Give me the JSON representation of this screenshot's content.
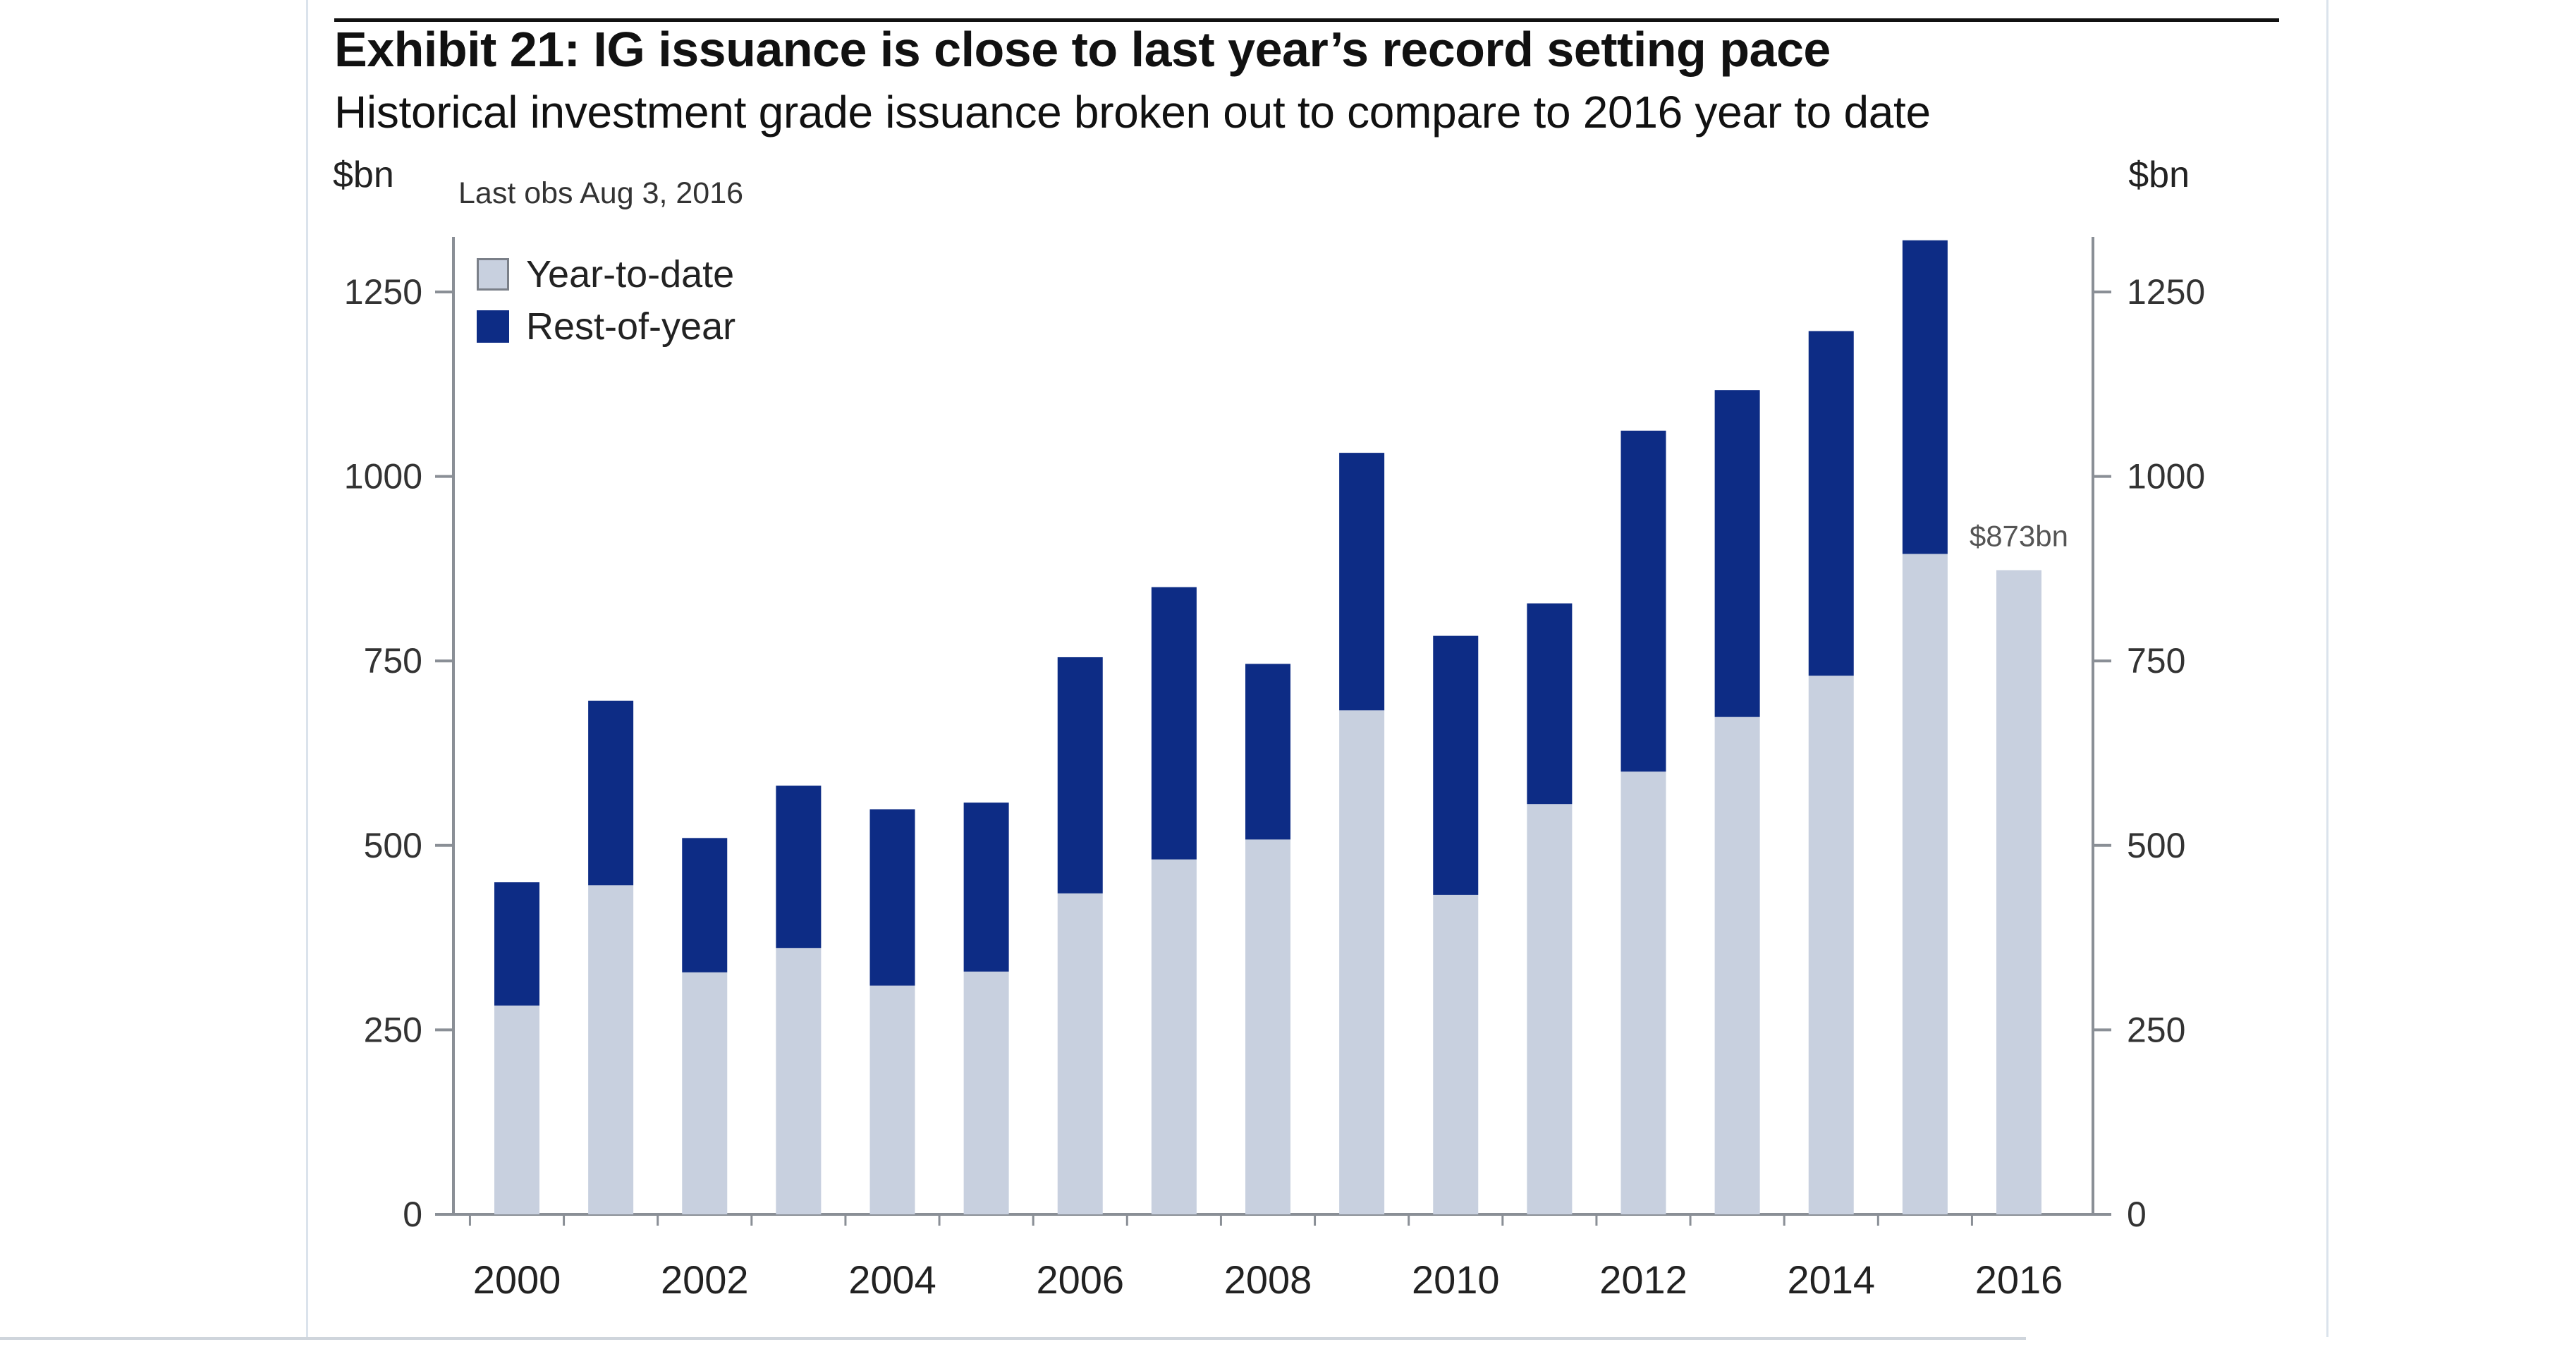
{
  "chart_data": {
    "type": "bar",
    "stacked": true,
    "title": "Exhibit 21: IG issuance is close to last year’s record setting pace",
    "subtitle": "Historical investment grade issuance broken out to compare to 2016 year to date",
    "ylabel_left": "$bn",
    "ylabel_right": "$bn",
    "note": "Last obs Aug 3, 2016",
    "ylim": [
      0,
      1350
    ],
    "yticks": [
      0,
      250,
      500,
      750,
      1000,
      1250
    ],
    "categories": [
      "2000",
      "2001",
      "2002",
      "2003",
      "2004",
      "2005",
      "2006",
      "2007",
      "2008",
      "2009",
      "2010",
      "2011",
      "2012",
      "2013",
      "2014",
      "2015",
      "2016"
    ],
    "xtick_labels": [
      "2000",
      "",
      "2002",
      "",
      "2004",
      "",
      "2006",
      "",
      "2008",
      "",
      "2010",
      "",
      "2012",
      "",
      "2014",
      "",
      "2016"
    ],
    "series": [
      {
        "name": "Year-to-date",
        "color": "#c8d0df",
        "values": [
          283,
          446,
          328,
          361,
          310,
          329,
          435,
          481,
          508,
          683,
          433,
          556,
          600,
          674,
          730,
          895,
          873
        ]
      },
      {
        "name": "Rest-of-year",
        "color": "#0d2c85",
        "values": [
          167,
          250,
          182,
          220,
          239,
          229,
          320,
          369,
          238,
          349,
          351,
          272,
          462,
          443,
          467,
          425,
          0
        ]
      }
    ],
    "annotation": {
      "text": "$873bn",
      "category": "2016",
      "value": 873
    },
    "legend": [
      "Year-to-date",
      "Rest-of-year"
    ],
    "legend_position": "top-left",
    "grid": false
  }
}
